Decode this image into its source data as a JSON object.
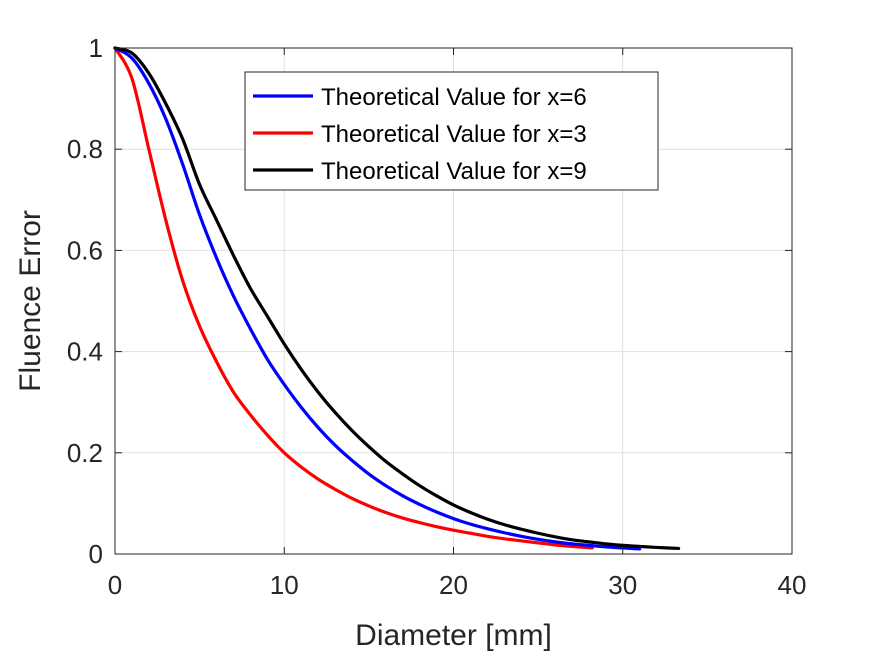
{
  "chart_data": {
    "type": "line",
    "title": "",
    "xlabel": "Diameter [mm]",
    "ylabel": "Fluence Error",
    "xlim": [
      0,
      40
    ],
    "ylim": [
      0,
      1
    ],
    "xticks": [
      0,
      10,
      20,
      30,
      40
    ],
    "xtick_labels": [
      "0",
      "10",
      "20",
      "30",
      "40"
    ],
    "yticks": [
      0,
      0.2,
      0.4,
      0.6,
      0.8,
      1
    ],
    "ytick_labels": [
      "0",
      "0.2",
      "0.4",
      "0.6",
      "0.8",
      "1"
    ],
    "grid": true,
    "box": true,
    "legend_position": "top-center",
    "series": [
      {
        "name": "Theoretical Value for x=6",
        "color": "#0000ff",
        "x": [
          0,
          1,
          2,
          3,
          4,
          5,
          6,
          7,
          8,
          9,
          10,
          11,
          12,
          13,
          14,
          15,
          16,
          17,
          18,
          19,
          20,
          21,
          22,
          23,
          24,
          25,
          26,
          27,
          28,
          29,
          30,
          31
        ],
        "y": [
          1.0,
          0.98,
          0.93,
          0.86,
          0.77,
          0.67,
          0.585,
          0.51,
          0.445,
          0.385,
          0.335,
          0.29,
          0.25,
          0.215,
          0.185,
          0.158,
          0.135,
          0.115,
          0.098,
          0.083,
          0.07,
          0.059,
          0.05,
          0.042,
          0.035,
          0.029,
          0.024,
          0.02,
          0.017,
          0.014,
          0.012,
          0.01
        ]
      },
      {
        "name": "Theoretical Value for x=3",
        "color": "#ff0000",
        "x": [
          0,
          1,
          2,
          3,
          4,
          5,
          6,
          7,
          8,
          9,
          10,
          11,
          12,
          13,
          14,
          15,
          16,
          17,
          18,
          19,
          20,
          21,
          22,
          23,
          24,
          25,
          26,
          27,
          28.2
        ],
        "y": [
          1.0,
          0.94,
          0.8,
          0.66,
          0.54,
          0.45,
          0.38,
          0.32,
          0.275,
          0.235,
          0.2,
          0.172,
          0.148,
          0.128,
          0.11,
          0.095,
          0.082,
          0.071,
          0.062,
          0.054,
          0.047,
          0.041,
          0.035,
          0.03,
          0.026,
          0.022,
          0.018,
          0.015,
          0.012
        ]
      },
      {
        "name": "Theoretical Value for x=9",
        "color": "#000000",
        "x": [
          0,
          1,
          2,
          3,
          4,
          5,
          6,
          7,
          8,
          9,
          10,
          11,
          12,
          13,
          14,
          15,
          16,
          17,
          18,
          19,
          20,
          21,
          22,
          23,
          24,
          25,
          26,
          27,
          28,
          29,
          30,
          31,
          32,
          33.3
        ],
        "y": [
          1.0,
          0.99,
          0.95,
          0.89,
          0.82,
          0.73,
          0.66,
          0.59,
          0.525,
          0.47,
          0.415,
          0.365,
          0.32,
          0.28,
          0.244,
          0.212,
          0.183,
          0.158,
          0.135,
          0.115,
          0.097,
          0.082,
          0.069,
          0.058,
          0.049,
          0.041,
          0.034,
          0.028,
          0.024,
          0.02,
          0.017,
          0.015,
          0.013,
          0.011
        ]
      }
    ]
  }
}
